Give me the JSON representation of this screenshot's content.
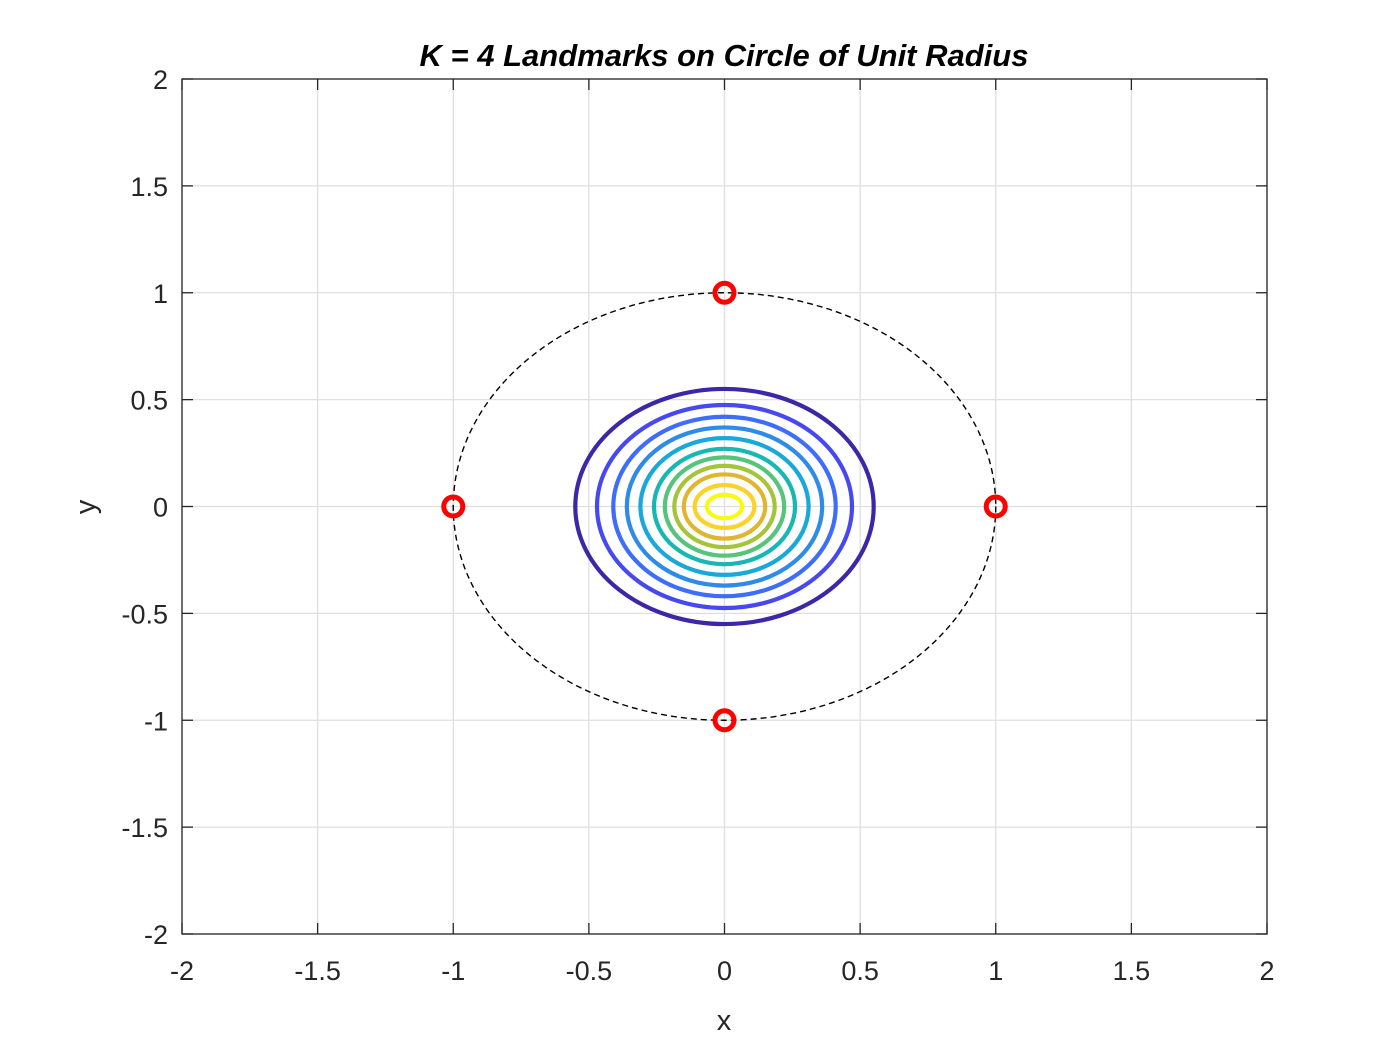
{
  "chart_data": {
    "type": "contour",
    "title": "K = 4 Landmarks on Circle of Unit Radius",
    "xlabel": "x",
    "ylabel": "y",
    "xlim": [
      -2,
      2
    ],
    "ylim": [
      -2,
      2
    ],
    "xticks": [
      "-2",
      "-1.5",
      "-1",
      "-0.5",
      "0",
      "0.5",
      "1",
      "1.5",
      "2"
    ],
    "yticks": [
      "-2",
      "-1.5",
      "-1",
      "-0.5",
      "0",
      "0.5",
      "1",
      "1.5",
      "2"
    ],
    "grid": true,
    "reference_circle": {
      "center": [
        0,
        0
      ],
      "radius": 1,
      "style": "dashed",
      "color": "#000000"
    },
    "landmarks": {
      "color": "#ff0000",
      "marker": "circle",
      "points": [
        {
          "x": 1,
          "y": 0
        },
        {
          "x": 0,
          "y": 1
        },
        {
          "x": -1,
          "y": 0
        },
        {
          "x": 0,
          "y": -1
        }
      ]
    },
    "contours": {
      "center": [
        0,
        0
      ],
      "levels": [
        {
          "rx": 0.55,
          "ry": 0.55,
          "color": "#3e26a8"
        },
        {
          "rx": 0.47,
          "ry": 0.475,
          "color": "#4748f0"
        },
        {
          "rx": 0.41,
          "ry": 0.42,
          "color": "#3f6dfb"
        },
        {
          "rx": 0.36,
          "ry": 0.37,
          "color": "#2e8be8"
        },
        {
          "rx": 0.31,
          "ry": 0.32,
          "color": "#18a8d9"
        },
        {
          "rx": 0.26,
          "ry": 0.27,
          "color": "#17b7b4"
        },
        {
          "rx": 0.22,
          "ry": 0.23,
          "color": "#56c47a"
        },
        {
          "rx": 0.185,
          "ry": 0.19,
          "color": "#a5c439"
        },
        {
          "rx": 0.15,
          "ry": 0.15,
          "color": "#e2b52e"
        },
        {
          "rx": 0.11,
          "ry": 0.1,
          "color": "#fcd229"
        },
        {
          "rx": 0.065,
          "ry": 0.055,
          "color": "#fafa10"
        }
      ]
    }
  }
}
